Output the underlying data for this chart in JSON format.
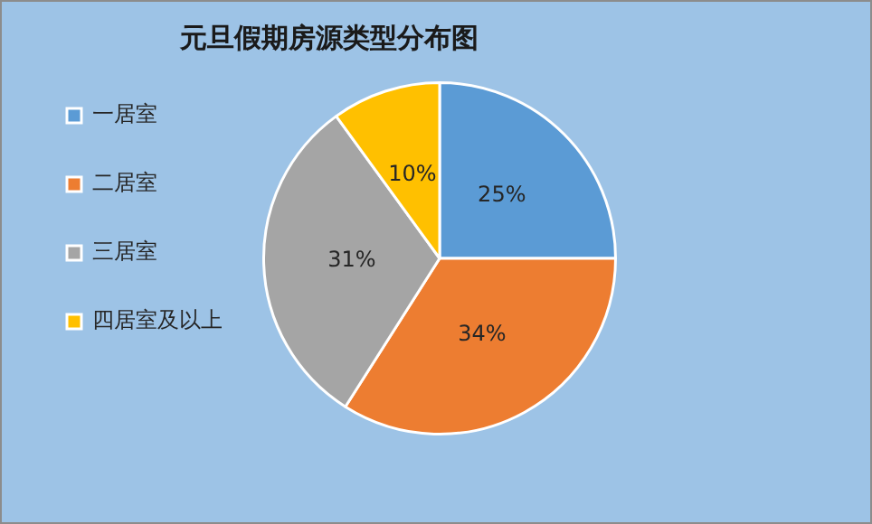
{
  "chart_data": {
    "type": "pie",
    "title": "元旦假期房源类型分布图",
    "categories": [
      "一居室",
      "二居室",
      "三居室",
      "四居室及以上"
    ],
    "values": [
      25,
      34,
      31,
      10
    ],
    "colors": [
      "#5b9bd5",
      "#ed7d31",
      "#a5a5a5",
      "#ffc000"
    ],
    "value_labels": [
      "25%",
      "34%",
      "31%",
      "10%"
    ],
    "legend": "left"
  }
}
